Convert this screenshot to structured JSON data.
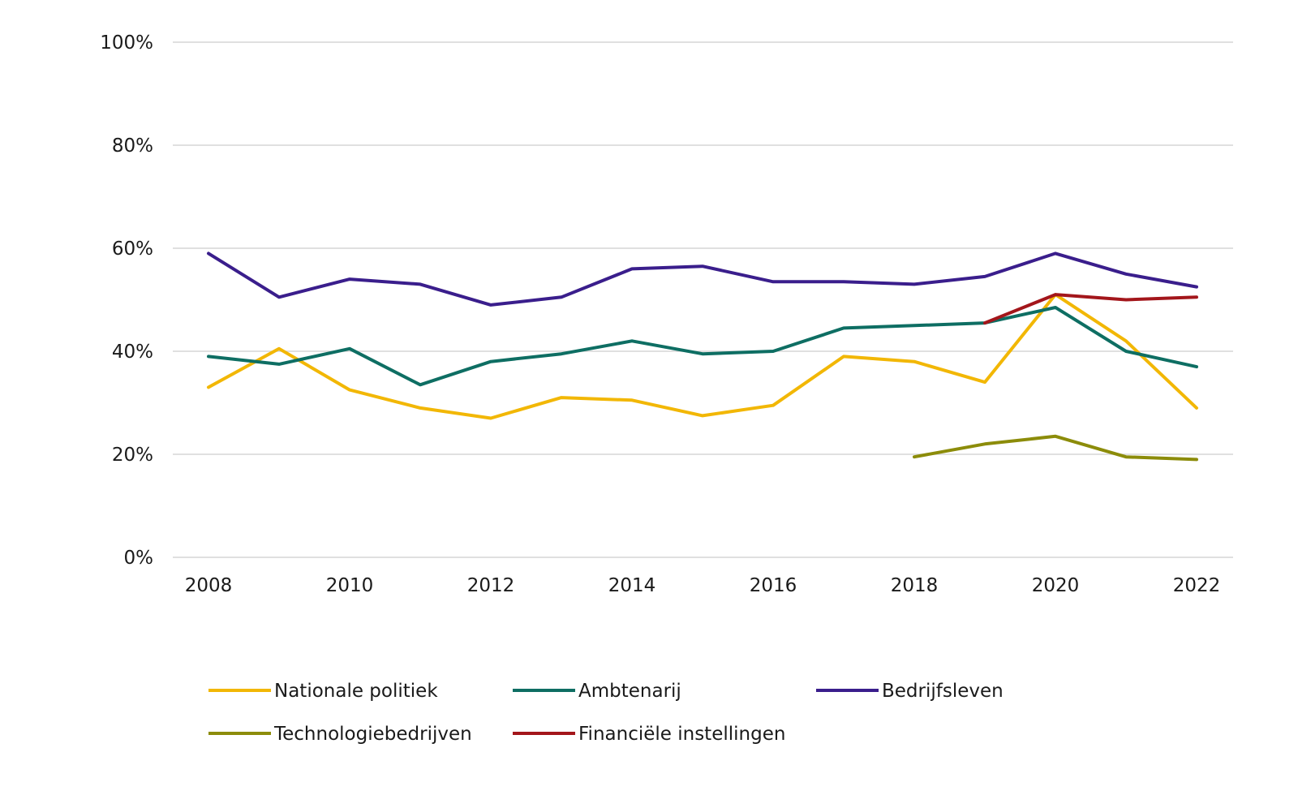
{
  "chart_data": {
    "type": "line",
    "title": "",
    "xlabel": "",
    "ylabel": "",
    "x": [
      2008,
      2009,
      2010,
      2011,
      2012,
      2013,
      2014,
      2015,
      2016,
      2017,
      2018,
      2019,
      2020,
      2021,
      2022
    ],
    "x_tick_labels": [
      "2008",
      "2010",
      "2012",
      "2014",
      "2016",
      "2018",
      "2020",
      "2022"
    ],
    "y_tick_labels": [
      "0%",
      "20%",
      "40%",
      "60%",
      "80%",
      "100%"
    ],
    "ylim": [
      0,
      100
    ],
    "y_unit": "%",
    "grid": "horizontal",
    "legend_position": "bottom",
    "series": [
      {
        "name": "Nationale politiek",
        "color": "#F2B705",
        "values": [
          33,
          40.5,
          32.5,
          29,
          27,
          31,
          30.5,
          27.5,
          29.5,
          39,
          38,
          34,
          51,
          42,
          29
        ]
      },
      {
        "name": "Ambtenarij",
        "color": "#0E6E63",
        "values": [
          39,
          37.5,
          40.5,
          33.5,
          38,
          39.5,
          42,
          39.5,
          40,
          44.5,
          45,
          45.5,
          48.5,
          40,
          37
        ]
      },
      {
        "name": "Bedrijfsleven",
        "color": "#3A1E8C",
        "values": [
          59,
          50.5,
          54,
          53,
          49,
          50.5,
          56,
          56.5,
          53.5,
          53.5,
          53,
          54.5,
          59,
          55,
          52.5
        ]
      },
      {
        "name": "Technologiebedrijven",
        "color": "#8C8C0A",
        "values": [
          null,
          null,
          null,
          null,
          null,
          null,
          null,
          null,
          null,
          null,
          19.5,
          22,
          23.5,
          19.5,
          19
        ]
      },
      {
        "name": "Financiële instellingen",
        "color": "#A3161B",
        "values": [
          null,
          null,
          null,
          null,
          null,
          null,
          null,
          null,
          null,
          null,
          null,
          45.5,
          51,
          50,
          50.5
        ]
      }
    ]
  }
}
